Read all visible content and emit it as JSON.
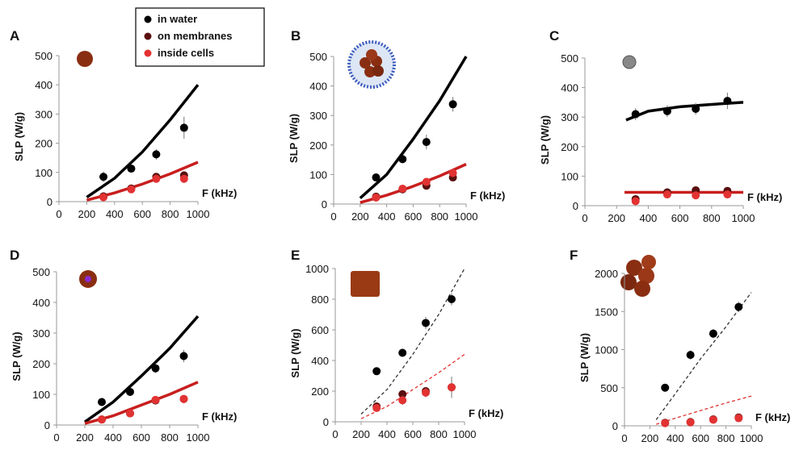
{
  "chart_data": [
    {
      "type": "scatter",
      "label": "A",
      "ylabel": "SLP (W/g)",
      "xlabel": "F (kHz)",
      "xlim": [
        0,
        1000
      ],
      "xticks": [
        0,
        200,
        400,
        600,
        800,
        1000
      ],
      "ylim": [
        0,
        500
      ],
      "yticks": [
        0,
        100,
        200,
        300,
        400,
        500
      ],
      "legend": true,
      "series": [
        {
          "name": "in water",
          "color": "#000000",
          "x": [
            320,
            520,
            700,
            900
          ],
          "values": [
            85,
            113,
            162,
            253
          ],
          "errors": [
            18,
            8,
            18,
            38
          ]
        },
        {
          "name": "on membranes",
          "color": "#5a0f0f",
          "x": [
            320,
            520,
            700,
            900
          ],
          "values": [
            18,
            45,
            85,
            90
          ]
        },
        {
          "name": "inside cells",
          "color": "#e23232",
          "x": [
            320,
            520,
            700,
            900
          ],
          "values": [
            15,
            42,
            78,
            78
          ]
        }
      ],
      "fits": [
        {
          "color": "#000000",
          "dashed": false,
          "x": [
            200,
            400,
            600,
            800,
            1000
          ],
          "values": [
            15,
            80,
            170,
            280,
            400
          ]
        },
        {
          "color": "#c81e1e",
          "dashed": false,
          "x": [
            200,
            400,
            600,
            800,
            1000
          ],
          "values": [
            5,
            30,
            60,
            95,
            135
          ]
        }
      ]
    },
    {
      "type": "scatter",
      "label": "B",
      "ylabel": "SLP (W/g)",
      "xlabel": "F (kHz)",
      "xlim": [
        0,
        1000
      ],
      "xticks": [
        0,
        200,
        400,
        600,
        800,
        1000
      ],
      "ylim": [
        0,
        500
      ],
      "yticks": [
        0,
        100,
        200,
        300,
        400,
        500
      ],
      "series": [
        {
          "color": "#000000",
          "x": [
            320,
            520,
            700,
            900
          ],
          "values": [
            90,
            152,
            210,
            338
          ],
          "errors": [
            8,
            10,
            25,
            25
          ]
        },
        {
          "color": "#5a0f0f",
          "x": [
            320,
            520,
            700,
            900
          ],
          "values": [
            25,
            50,
            62,
            90
          ]
        },
        {
          "color": "#e23232",
          "x": [
            320,
            520,
            700,
            900
          ],
          "values": [
            22,
            52,
            75,
            105
          ]
        }
      ],
      "fits": [
        {
          "color": "#000000",
          "dashed": false,
          "x": [
            200,
            400,
            600,
            800,
            1000
          ],
          "values": [
            20,
            100,
            220,
            350,
            500
          ]
        },
        {
          "color": "#c81e1e",
          "dashed": false,
          "x": [
            200,
            400,
            600,
            800,
            1000
          ],
          "values": [
            5,
            30,
            60,
            95,
            135
          ]
        }
      ]
    },
    {
      "type": "scatter",
      "label": "C",
      "ylabel": "SLP (W/g)",
      "xlabel": "F (kHz)",
      "xlim": [
        0,
        1000
      ],
      "xticks": [
        0,
        200,
        400,
        600,
        800,
        1000
      ],
      "ylim": [
        0,
        500
      ],
      "yticks": [
        0,
        100,
        200,
        300,
        400,
        500
      ],
      "series": [
        {
          "color": "#000000",
          "x": [
            320,
            520,
            700,
            900
          ],
          "values": [
            310,
            320,
            328,
            355
          ],
          "errors": [
            20,
            20,
            20,
            28
          ]
        },
        {
          "color": "#5a0f0f",
          "x": [
            320,
            520,
            700,
            900
          ],
          "values": [
            22,
            45,
            52,
            50
          ]
        },
        {
          "color": "#e23232",
          "x": [
            320,
            520,
            700,
            900
          ],
          "values": [
            15,
            38,
            35,
            38
          ]
        }
      ],
      "fits": [
        {
          "color": "#000000",
          "dashed": false,
          "x": [
            260,
            400,
            600,
            800,
            1000
          ],
          "values": [
            290,
            320,
            335,
            343,
            350
          ]
        },
        {
          "color": "#c81e1e",
          "dashed": false,
          "x": [
            250,
            1000
          ],
          "values": [
            45,
            45
          ]
        }
      ]
    },
    {
      "type": "scatter",
      "label": "D",
      "ylabel": "SLP (W/g)",
      "xlabel": "F (kHz)",
      "xlim": [
        0,
        1000
      ],
      "xticks": [
        0,
        200,
        400,
        600,
        800,
        1000
      ],
      "ylim": [
        0,
        500
      ],
      "yticks": [
        0,
        100,
        200,
        300,
        400,
        500
      ],
      "series": [
        {
          "color": "#000000",
          "x": [
            320,
            520,
            700,
            900
          ],
          "values": [
            75,
            108,
            185,
            225
          ],
          "errors": [
            5,
            5,
            15,
            20
          ]
        },
        {
          "color": "#5a0f0f",
          "x": [
            320,
            520,
            700,
            900
          ],
          "values": [
            18,
            38,
            80,
            85
          ]
        },
        {
          "color": "#e23232",
          "x": [
            320,
            520,
            700,
            900
          ],
          "values": [
            18,
            38,
            82,
            85
          ]
        }
      ],
      "fits": [
        {
          "color": "#000000",
          "dashed": false,
          "x": [
            200,
            400,
            600,
            800,
            1000
          ],
          "values": [
            10,
            75,
            160,
            250,
            355
          ]
        },
        {
          "color": "#c81e1e",
          "dashed": false,
          "x": [
            200,
            400,
            600,
            800,
            1000
          ],
          "values": [
            5,
            30,
            65,
            100,
            140
          ]
        }
      ]
    },
    {
      "type": "scatter",
      "label": "E",
      "ylabel": "SLP (W/g)",
      "xlabel": "F (kHz)",
      "xlim": [
        0,
        1000
      ],
      "xticks": [
        0,
        200,
        400,
        600,
        800,
        1000
      ],
      "ylim": [
        0,
        1000
      ],
      "yticks": [
        0,
        200,
        400,
        600,
        800,
        1000
      ],
      "series": [
        {
          "color": "#000000",
          "x": [
            320,
            520,
            700,
            900
          ],
          "values": [
            330,
            450,
            645,
            800
          ],
          "errors": [
            10,
            25,
            40,
            40
          ]
        },
        {
          "color": "#5a0f0f",
          "x": [
            320,
            520,
            700,
            900
          ],
          "values": [
            100,
            180,
            200,
            225
          ]
        },
        {
          "color": "#e23232",
          "x": [
            320,
            520,
            700,
            900
          ],
          "values": [
            90,
            140,
            190,
            225
          ],
          "errors": [
            20,
            30,
            30,
            70
          ]
        }
      ],
      "fits": [
        {
          "color": "#333333",
          "dashed": true,
          "x": [
            200,
            400,
            600,
            800,
            1000
          ],
          "values": [
            50,
            210,
            440,
            700,
            1000
          ]
        },
        {
          "color": "#e23232",
          "dashed": true,
          "x": [
            200,
            400,
            600,
            800,
            1000
          ],
          "values": [
            20,
            100,
            210,
            320,
            440
          ]
        }
      ]
    },
    {
      "type": "scatter",
      "label": "F",
      "ylabel": "SLP (W/g)",
      "xlabel": "F (kHz)",
      "xlim": [
        0,
        1000
      ],
      "xticks": [
        0,
        200,
        400,
        600,
        800,
        1000
      ],
      "ylim": [
        0,
        2000
      ],
      "yticks": [
        0,
        500,
        1000,
        1500,
        2000
      ],
      "series": [
        {
          "color": "#000000",
          "x": [
            320,
            520,
            700,
            900
          ],
          "values": [
            500,
            930,
            1210,
            1560
          ],
          "errors": [
            20,
            60,
            60,
            70
          ]
        },
        {
          "color": "#5a0f0f",
          "x": [
            320,
            520,
            700,
            900
          ],
          "values": [
            40,
            50,
            85,
            110
          ]
        },
        {
          "color": "#e23232",
          "x": [
            320,
            520,
            700,
            900
          ],
          "values": [
            35,
            45,
            80,
            100
          ]
        }
      ],
      "fits": [
        {
          "color": "#333333",
          "dashed": true,
          "x": [
            250,
            400,
            600,
            800,
            1000
          ],
          "values": [
            80,
            420,
            880,
            1300,
            1750
          ]
        },
        {
          "color": "#e23232",
          "dashed": true,
          "x": [
            250,
            400,
            600,
            800,
            1000
          ],
          "values": [
            20,
            100,
            200,
            300,
            390
          ]
        }
      ]
    }
  ]
}
